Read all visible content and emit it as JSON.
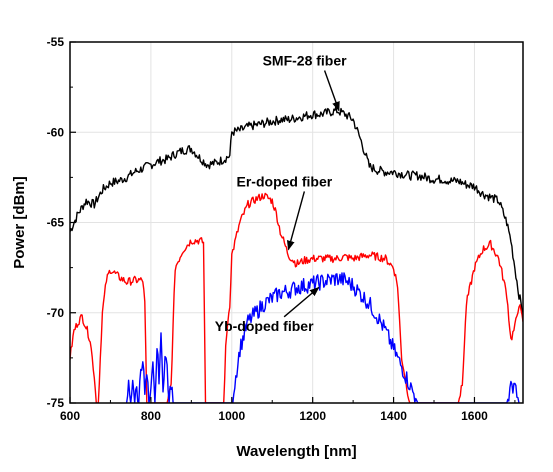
{
  "chart_data": {
    "type": "line",
    "xlabel": "Wavelength [nm]",
    "ylabel": "Power [dBm]",
    "xlim": [
      600,
      1720
    ],
    "ylim": [
      -75,
      -55
    ],
    "xticks": [
      600,
      800,
      1000,
      1200,
      1400,
      1600
    ],
    "yticks": [
      -75,
      -70,
      -65,
      -60,
      -55
    ],
    "grid": true,
    "series": [
      {
        "name": "SMF-28 fiber",
        "color": "#000000",
        "x": [
          600,
          620,
          640,
          660,
          680,
          700,
          720,
          740,
          760,
          780,
          800,
          820,
          840,
          860,
          880,
          900,
          920,
          940,
          960,
          980,
          995,
          1000,
          1020,
          1040,
          1060,
          1080,
          1100,
          1120,
          1140,
          1160,
          1180,
          1200,
          1220,
          1240,
          1260,
          1280,
          1300,
          1320,
          1340,
          1360,
          1380,
          1400,
          1420,
          1440,
          1460,
          1480,
          1500,
          1520,
          1540,
          1560,
          1580,
          1600,
          1620,
          1640,
          1660,
          1680,
          1690,
          1700,
          1710,
          1720
        ],
        "y": [
          -65.5,
          -64.5,
          -63.8,
          -64.0,
          -63.2,
          -62.8,
          -62.7,
          -62.5,
          -62.2,
          -62.0,
          -61.8,
          -61.6,
          -61.5,
          -61.2,
          -61.0,
          -60.9,
          -61.4,
          -61.8,
          -61.7,
          -61.5,
          -61.3,
          -60.0,
          -59.9,
          -59.7,
          -59.6,
          -59.5,
          -59.4,
          -59.3,
          -59.3,
          -59.2,
          -59.1,
          -59.0,
          -59.0,
          -58.9,
          -58.8,
          -59.0,
          -59.3,
          -60.5,
          -61.9,
          -62.1,
          -62.2,
          -62.2,
          -62.3,
          -62.4,
          -62.4,
          -62.5,
          -62.6,
          -62.6,
          -62.7,
          -62.7,
          -62.9,
          -63.0,
          -63.4,
          -63.6,
          -63.8,
          -65.0,
          -66.0,
          -67.5,
          -69.0,
          -70.0
        ]
      },
      {
        "name": "Er-doped fiber",
        "color": "#ff0000",
        "x": [
          600,
          610,
          620,
          630,
          640,
          650,
          660,
          665,
          670,
          680,
          690,
          700,
          720,
          740,
          760,
          780,
          785,
          790,
          800,
          820,
          840,
          850,
          860,
          880,
          900,
          920,
          930,
          935,
          940,
          960,
          970,
          980,
          985,
          990,
          995,
          1000,
          1020,
          1040,
          1060,
          1080,
          1100,
          1110,
          1120,
          1140,
          1160,
          1180,
          1200,
          1220,
          1240,
          1260,
          1280,
          1300,
          1320,
          1340,
          1360,
          1380,
          1400,
          1410,
          1420,
          1440,
          1460,
          1560,
          1570,
          1580,
          1600,
          1620,
          1640,
          1660,
          1680,
          1690,
          1700,
          1710,
          1720
        ],
        "y": [
          -72.5,
          -71.0,
          -70.5,
          -70.2,
          -70.8,
          -71.5,
          -73.5,
          -75.0,
          -75.0,
          -70.0,
          -68.2,
          -67.6,
          -68.0,
          -68.3,
          -68.2,
          -68.2,
          -69.5,
          -75.0,
          -75.0,
          -75.0,
          -75.0,
          -74.0,
          -67.5,
          -66.5,
          -66.0,
          -66.0,
          -66.1,
          -75.0,
          -75.0,
          -75.0,
          -75.0,
          -75.0,
          -72.0,
          -70.5,
          -69.5,
          -66.8,
          -65.0,
          -64.0,
          -63.7,
          -63.5,
          -63.8,
          -64.5,
          -65.5,
          -66.8,
          -67.3,
          -67.1,
          -67.0,
          -67.0,
          -67.0,
          -67.0,
          -66.9,
          -67.0,
          -66.9,
          -66.8,
          -66.9,
          -67.0,
          -67.5,
          -68.5,
          -72.5,
          -75.0,
          -75.0,
          -75.0,
          -74.0,
          -69.5,
          -67.5,
          -66.5,
          -66.2,
          -67.0,
          -69.0,
          -71.5,
          -70.8,
          -69.5,
          -70.5
        ]
      },
      {
        "name": "Yb-doped fiber",
        "color": "#0000ff",
        "x": [
          740,
          745,
          750,
          755,
          760,
          765,
          770,
          775,
          780,
          785,
          790,
          795,
          800,
          805,
          810,
          815,
          820,
          825,
          830,
          835,
          840,
          845,
          850,
          855,
          860,
          1000,
          1020,
          1040,
          1060,
          1080,
          1100,
          1120,
          1140,
          1160,
          1180,
          1200,
          1220,
          1240,
          1260,
          1280,
          1300,
          1320,
          1340,
          1360,
          1380,
          1400,
          1420,
          1440,
          1460,
          1680,
          1690,
          1700,
          1710
        ],
        "y": [
          -75.0,
          -74.0,
          -75.0,
          -73.5,
          -75.0,
          -74.2,
          -75.0,
          -73.0,
          -72.5,
          -74.5,
          -73.5,
          -75.0,
          -74.5,
          -73.0,
          -75.0,
          -72.0,
          -73.5,
          -71.5,
          -74.0,
          -72.5,
          -73.0,
          -75.0,
          -74.0,
          -75.0,
          -75.0,
          -75.0,
          -72.0,
          -70.5,
          -70.0,
          -69.5,
          -69.2,
          -68.9,
          -68.8,
          -68.6,
          -68.5,
          -68.4,
          -68.3,
          -68.2,
          -68.1,
          -68.2,
          -68.5,
          -69.0,
          -69.5,
          -70.2,
          -71.0,
          -72.0,
          -73.0,
          -74.0,
          -75.0,
          -75.0,
          -74.2,
          -73.8,
          -75.0
        ]
      }
    ],
    "annotations": [
      {
        "text": "SMF-28 fiber",
        "x": 1180,
        "y": -56.3,
        "arrow_to": [
          1265,
          -58.8
        ]
      },
      {
        "text": "Er-doped fiber",
        "x": 1130,
        "y": -63.0,
        "arrow_to": [
          1140,
          -66.5
        ]
      },
      {
        "text": "Yb-doped fiber",
        "x": 1080,
        "y": -71.0,
        "arrow_to": [
          1215,
          -68.6
        ]
      }
    ]
  }
}
